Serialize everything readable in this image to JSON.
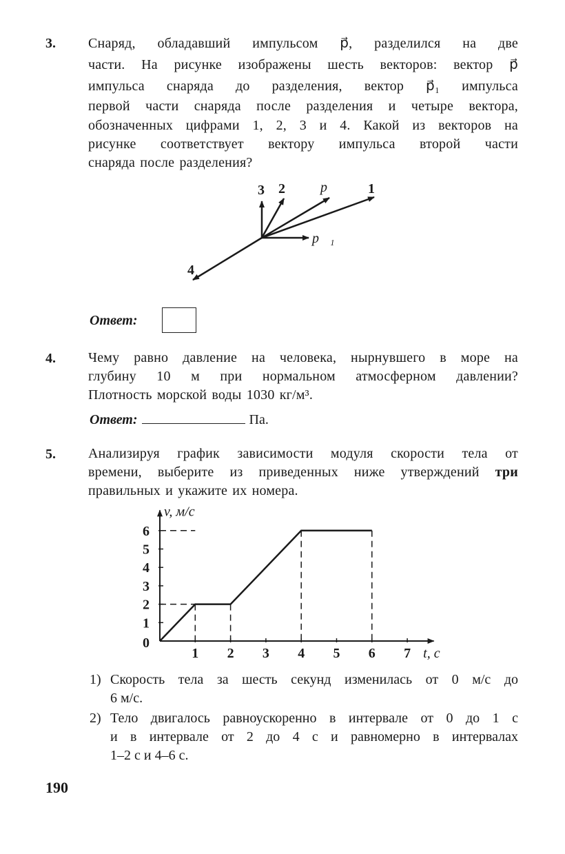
{
  "q3": {
    "number": "3.",
    "lines": [
      "Снаряд, обладавший импульсом p⃗, разделился на две",
      "части. На рисунке изображены шесть векторов: вектор p⃗",
      "импульса снаряда до разделения, вектор p⃗₁ импульса",
      "первой части снаряда после разделения и четыре вектора,",
      "обозначенных цифрами 1, 2, 3 и 4. Какой из векторов на",
      "рисунке соответствует вектору импульса второй части",
      "снаряда после разделения?"
    ],
    "diagram_labels": {
      "v3": "3",
      "v2": "2",
      "p": "p⃗",
      "v1": "1",
      "p1": "p⃗₁",
      "v4": "4"
    },
    "answer_label": "Ответ:"
  },
  "q4": {
    "number": "4.",
    "lines": [
      "Чему равно давление на человека, нырнувшего в море на",
      "глубину 10 м при нормальном атмосферном давлении?",
      "Плотность морской воды 1030 кг/м³."
    ],
    "answer_label": "Ответ:",
    "answer_unit": "Па."
  },
  "q5": {
    "number": "5.",
    "lines": [
      "Анализируя график зависимости модуля скорости тела от",
      "времени, выберите из приведенных ниже утверждений",
      "правильных и укажите их номера."
    ],
    "bold_word": "три",
    "options": [
      {
        "num": "1)",
        "lines": [
          "Скорость тела за шесть секунд изменилась от 0 м/с до",
          "6 м/с."
        ]
      },
      {
        "num": "2)",
        "lines": [
          "Тело двигалось равноускоренно в интервале от 0 до 1 с",
          "и в интервале от 2 до 4 с и равномерно в интервалах",
          "1–2 с и 4–6 с."
        ]
      }
    ]
  },
  "chart_data": {
    "type": "line",
    "xlabel": "t, с",
    "ylabel": "v, м/с",
    "x_ticks": [
      "1",
      "2",
      "3",
      "4",
      "5",
      "6",
      "7"
    ],
    "y_ticks": [
      "0",
      "1",
      "2",
      "3",
      "4",
      "5",
      "6"
    ],
    "xlim": [
      0,
      7.5
    ],
    "ylim": [
      0,
      6.5
    ],
    "points": [
      [
        0,
        0
      ],
      [
        1,
        2
      ],
      [
        2,
        2
      ],
      [
        4,
        6
      ],
      [
        6,
        6
      ]
    ],
    "grid": false,
    "dashed_guides": true
  },
  "page_number": "190"
}
